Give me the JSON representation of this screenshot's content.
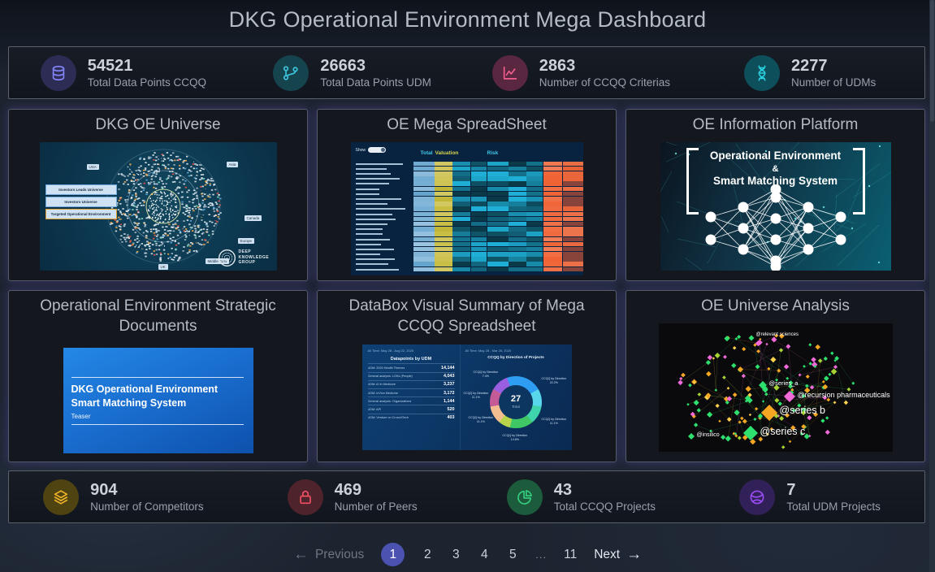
{
  "header": {
    "title": "DKG Operational Environment Mega Dashboard"
  },
  "icons": {
    "arrow_left": "←",
    "arrow_right": "→"
  },
  "top_stats": [
    {
      "icon": "database-icon",
      "icon_color": "#8385f6",
      "icon_bg": "#2c2c54",
      "value": "54521",
      "label": "Total Data Points CCQQ"
    },
    {
      "icon": "git-branch-icon",
      "icon_color": "#3ec6de",
      "icon_bg": "#15444f",
      "value": "26663",
      "label": "Total Data Points UDM"
    },
    {
      "icon": "line-chart-icon",
      "icon_color": "#f25d8e",
      "icon_bg": "#5a2740",
      "value": "2863",
      "label": "Number of CCQQ Criterias"
    },
    {
      "icon": "dna-icon",
      "icon_color": "#2bd2e2",
      "icon_bg": "#0e4f5c",
      "value": "2277",
      "label": "Number of UDMs"
    }
  ],
  "bottom_stats": [
    {
      "icon": "layers-icon",
      "icon_color": "#f0b429",
      "icon_bg": "#4f4312",
      "value": "904",
      "label": "Number of Competitors"
    },
    {
      "icon": "lock-icon",
      "icon_color": "#ef4f63",
      "icon_bg": "#4e232b",
      "value": "469",
      "label": "Number of Peers"
    },
    {
      "icon": "pie-chart-icon",
      "icon_color": "#35d07f",
      "icon_bg": "#1c5b3c",
      "value": "43",
      "label": "Total CCQQ Projects"
    },
    {
      "icon": "globe-icon",
      "icon_color": "#9b4df5",
      "icon_bg": "#322058",
      "value": "7",
      "label": "Total UDM Projects"
    }
  ],
  "cards": [
    {
      "title": "DKG OE Universe",
      "callouts": [
        "Investors Leads Universe",
        "Investors Universe",
        "Targeted Operational Environment"
      ],
      "regions": [
        "USA",
        "Asia",
        "Canada",
        "Europe",
        "Middle East",
        "UK"
      ],
      "logo_text": "DEEP KNOWLEDGE GROUP",
      "palette": [
        "#d9e4eb",
        "#a3b8c6",
        "#f0a64a",
        "#5aa7d8",
        "#e05548",
        "#243d4b",
        "#7ce0c3"
      ]
    },
    {
      "title": "OE Mega SpreadSheet",
      "show_label": "Show",
      "column_groups": [
        "Total",
        "Valuation",
        "Risk"
      ]
    },
    {
      "title": "OE Information Platform",
      "lines": [
        "Operational Environment",
        "&",
        "Smart Matching System"
      ]
    },
    {
      "title": "Operational Environment Strategic Documents",
      "doc_title": "DKG Operational Environment Smart Matching System",
      "doc_subtitle": "Teaser"
    },
    {
      "title": "DataBox Visual Summary of Mega CCQQ Spreadsheet",
      "left_period": "All Time: May 28 - Aug 22, 2020",
      "right_period": "All Time: May 28 - Mar 28, 2020",
      "table_title": "Datapoints by UDM",
      "table_rows": [
        {
          "label": "UDM: 2020 Health Themes",
          "value": "14,144"
        },
        {
          "label": "General analysis: LOKs (People)",
          "value": "4,043"
        },
        {
          "label": "UDM: AI in Medicine",
          "value": "3,237"
        },
        {
          "label": "UDM: InVivo Medicine",
          "value": "3,172"
        },
        {
          "label": "General analysis: Organizations",
          "value": "1,144"
        },
        {
          "label": "UDM: API",
          "value": "520"
        },
        {
          "label": "UDM: Venture on CrunchTech",
          "value": "403"
        }
      ],
      "donut_title": "CCQQ by Direction of Projects",
      "donut_center_value": "27",
      "donut_center_label": "Total",
      "donut_labels": [
        {
          "name": "CCQQ by Direction",
          "pct": "7.4%"
        },
        {
          "name": "CCQQ by Direction",
          "pct": "11.1%"
        },
        {
          "name": "CCQQ by Direction",
          "pct": "11.1%"
        },
        {
          "name": "CCQQ by Direction",
          "pct": "14.8%"
        },
        {
          "name": "CCQQ by Direction",
          "pct": "11.1%"
        },
        {
          "name": "CCQQ by Direction",
          "pct": "22.2%"
        }
      ],
      "chart_data": {
        "type": "pie",
        "title": "CCQQ by Direction of Projects",
        "total": 27,
        "segments": [
          {
            "value": 6,
            "pct": "22.2%",
            "color": "#2f9df2"
          },
          {
            "value": 3,
            "pct": "11.1%",
            "color": "#58d7ec"
          },
          {
            "value": 3,
            "pct": "11.1%",
            "color": "#3fd3ad"
          },
          {
            "value": 4,
            "pct": "14.8%",
            "color": "#3ec764"
          },
          {
            "value": 2,
            "pct": "7.4%",
            "color": "#b7d44b"
          },
          {
            "value": 3,
            "pct": "11.1%",
            "color": "#f3bd92"
          },
          {
            "value": 3,
            "pct": "11.1%",
            "color": "#c45a96"
          },
          {
            "value": 3,
            "pct": "11.1%",
            "color": "#9a5fe0"
          }
        ]
      }
    },
    {
      "title": "OE Universe Analysis",
      "labels": [
        "@relevant sciences",
        "@series_a",
        "@recursion pharmaceuticals",
        "@series b",
        "@series c",
        "@insilico"
      ],
      "palette": [
        "#2ee06e",
        "#f5a623",
        "#f06ad8",
        "#a6d435",
        "#ffd24d"
      ]
    }
  ],
  "pagination": {
    "previous_label": "Previous",
    "next_label": "Next",
    "pages": [
      "1",
      "2",
      "3",
      "4",
      "5",
      "...",
      "11"
    ],
    "active_page": "1"
  }
}
